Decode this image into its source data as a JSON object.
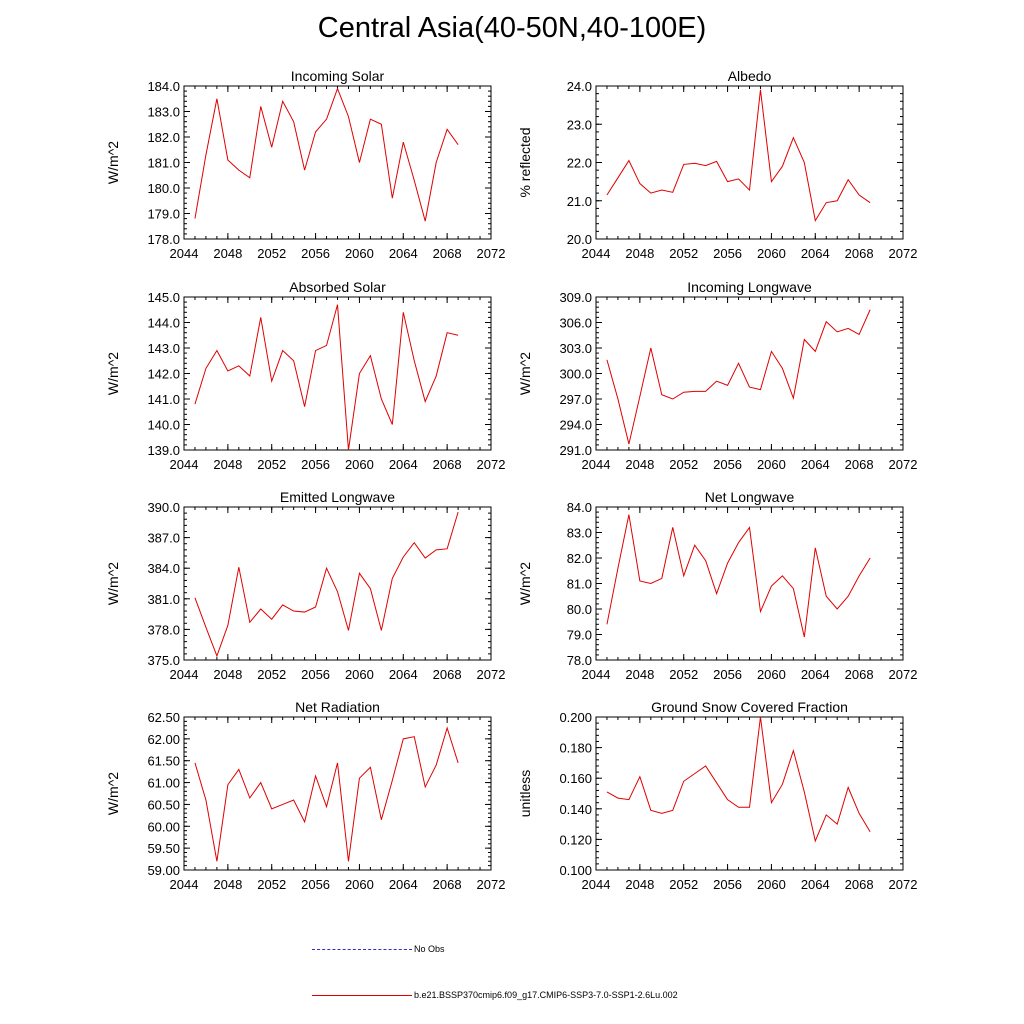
{
  "title": "Central Asia(40-50N,40-100E)",
  "legend": {
    "no_obs": "No Obs",
    "run": "b.e21.BSSP370cmip6.f09_g17.CMIP6-SSP3-7.0-SSP1-2.6Lu.002"
  },
  "colors": {
    "series": "#e00000",
    "no_obs": "#3030c8",
    "axis": "#000000"
  },
  "chart_data": [
    {
      "type": "line",
      "title": "Incoming Solar",
      "ylabel": "W/m^2",
      "xlim": [
        2044,
        2072
      ],
      "xticks": [
        2044,
        2048,
        2052,
        2056,
        2060,
        2064,
        2068,
        2072
      ],
      "xtick_labels": [
        "2044",
        "2048",
        "2052",
        "2056",
        "2060",
        "2064",
        "2068",
        "2072"
      ],
      "ylim": [
        178,
        184
      ],
      "yticks": [
        178,
        179,
        180,
        181,
        182,
        183,
        184
      ],
      "ytick_labels": [
        "178.0",
        "179.0",
        "180.0",
        "181.0",
        "182.0",
        "183.0",
        "184.0"
      ],
      "x": [
        2045,
        2046,
        2047,
        2048,
        2049,
        2050,
        2051,
        2052,
        2053,
        2054,
        2055,
        2056,
        2057,
        2058,
        2059,
        2060,
        2061,
        2062,
        2063,
        2064,
        2065,
        2066,
        2067,
        2068,
        2069
      ],
      "series": [
        {
          "values": [
            178.8,
            181.3,
            183.5,
            181.1,
            180.7,
            180.4,
            183.2,
            181.6,
            183.4,
            182.6,
            180.7,
            182.2,
            182.7,
            183.9,
            182.8,
            181.0,
            182.7,
            182.5,
            179.6,
            181.8,
            180.3,
            178.7,
            181.0,
            182.3,
            181.7
          ]
        }
      ]
    },
    {
      "type": "line",
      "title": "Albedo",
      "ylabel": "% reflected",
      "xlim": [
        2044,
        2072
      ],
      "xticks": [
        2044,
        2048,
        2052,
        2056,
        2060,
        2064,
        2068,
        2072
      ],
      "xtick_labels": [
        "2044",
        "2048",
        "2052",
        "2056",
        "2060",
        "2064",
        "2068",
        "2072"
      ],
      "ylim": [
        20,
        24
      ],
      "yticks": [
        20,
        21,
        22,
        23,
        24
      ],
      "ytick_labels": [
        "20.0",
        "21.0",
        "22.0",
        "23.0",
        "24.0"
      ],
      "x": [
        2045,
        2046,
        2047,
        2048,
        2049,
        2050,
        2051,
        2052,
        2053,
        2054,
        2055,
        2056,
        2057,
        2058,
        2059,
        2060,
        2061,
        2062,
        2063,
        2064,
        2065,
        2066,
        2067,
        2068,
        2069
      ],
      "series": [
        {
          "values": [
            21.15,
            21.6,
            22.05,
            21.45,
            21.2,
            21.28,
            21.22,
            21.95,
            21.98,
            21.92,
            22.03,
            21.5,
            21.57,
            21.28,
            23.9,
            21.5,
            21.9,
            22.65,
            22.0,
            20.48,
            20.95,
            21.0,
            21.55,
            21.15,
            20.95
          ]
        }
      ]
    },
    {
      "type": "line",
      "title": "Absorbed Solar",
      "ylabel": "W/m^2",
      "xlim": [
        2044,
        2072
      ],
      "xticks": [
        2044,
        2048,
        2052,
        2056,
        2060,
        2064,
        2068,
        2072
      ],
      "xtick_labels": [
        "2044",
        "2048",
        "2052",
        "2056",
        "2060",
        "2064",
        "2068",
        "2072"
      ],
      "ylim": [
        139,
        145
      ],
      "yticks": [
        139,
        140,
        141,
        142,
        143,
        144,
        145
      ],
      "ytick_labels": [
        "139.0",
        "140.0",
        "141.0",
        "142.0",
        "143.0",
        "144.0",
        "145.0"
      ],
      "x": [
        2045,
        2046,
        2047,
        2048,
        2049,
        2050,
        2051,
        2052,
        2053,
        2054,
        2055,
        2056,
        2057,
        2058,
        2059,
        2060,
        2061,
        2062,
        2063,
        2064,
        2065,
        2066,
        2067,
        2068,
        2069
      ],
      "series": [
        {
          "values": [
            140.8,
            142.2,
            142.9,
            142.1,
            142.3,
            141.9,
            144.2,
            141.7,
            142.9,
            142.5,
            140.7,
            142.9,
            143.1,
            144.7,
            139.0,
            142.0,
            142.7,
            141.0,
            140.0,
            144.4,
            142.5,
            140.9,
            141.9,
            143.6,
            143.5
          ]
        }
      ]
    },
    {
      "type": "line",
      "title": "Incoming Longwave",
      "ylabel": "W/m^2",
      "xlim": [
        2044,
        2072
      ],
      "xticks": [
        2044,
        2048,
        2052,
        2056,
        2060,
        2064,
        2068,
        2072
      ],
      "xtick_labels": [
        "2044",
        "2048",
        "2052",
        "2056",
        "2060",
        "2064",
        "2068",
        "2072"
      ],
      "ylim": [
        291,
        309
      ],
      "yticks": [
        291,
        294,
        297,
        300,
        303,
        306,
        309
      ],
      "ytick_labels": [
        "291.0",
        "294.0",
        "297.0",
        "300.0",
        "303.0",
        "306.0",
        "309.0"
      ],
      "x": [
        2045,
        2046,
        2047,
        2048,
        2049,
        2050,
        2051,
        2052,
        2053,
        2054,
        2055,
        2056,
        2057,
        2058,
        2059,
        2060,
        2061,
        2062,
        2063,
        2064,
        2065,
        2066,
        2067,
        2068,
        2069
      ],
      "series": [
        {
          "values": [
            301.6,
            297.0,
            291.7,
            297.3,
            303.0,
            297.5,
            297.0,
            297.8,
            297.9,
            297.9,
            299.1,
            298.6,
            301.2,
            298.4,
            298.1,
            302.6,
            300.6,
            297.1,
            304.0,
            302.6,
            306.1,
            304.9,
            305.3,
            304.6,
            307.5
          ]
        }
      ]
    },
    {
      "type": "line",
      "title": "Emitted Longwave",
      "ylabel": "W/m^2",
      "xlim": [
        2044,
        2072
      ],
      "xticks": [
        2044,
        2048,
        2052,
        2056,
        2060,
        2064,
        2068,
        2072
      ],
      "xtick_labels": [
        "2044",
        "2048",
        "2052",
        "2056",
        "2060",
        "2064",
        "2068",
        "2072"
      ],
      "ylim": [
        375,
        390
      ],
      "yticks": [
        375,
        378,
        381,
        384,
        387,
        390
      ],
      "ytick_labels": [
        "375.0",
        "378.0",
        "381.0",
        "384.0",
        "387.0",
        "390.0"
      ],
      "x": [
        2045,
        2046,
        2047,
        2048,
        2049,
        2050,
        2051,
        2052,
        2053,
        2054,
        2055,
        2056,
        2057,
        2058,
        2059,
        2060,
        2061,
        2062,
        2063,
        2064,
        2065,
        2066,
        2067,
        2068,
        2069
      ],
      "series": [
        {
          "values": [
            381.1,
            378.2,
            375.4,
            378.4,
            384.1,
            378.7,
            380.0,
            379.0,
            380.4,
            379.8,
            379.7,
            380.2,
            384.0,
            381.7,
            377.9,
            383.5,
            382.0,
            377.9,
            383.0,
            385.1,
            386.5,
            385.0,
            385.8,
            385.9,
            389.5
          ]
        }
      ]
    },
    {
      "type": "line",
      "title": "Net Longwave",
      "ylabel": "W/m^2",
      "xlim": [
        2044,
        2072
      ],
      "xticks": [
        2044,
        2048,
        2052,
        2056,
        2060,
        2064,
        2068,
        2072
      ],
      "xtick_labels": [
        "2044",
        "2048",
        "2052",
        "2056",
        "2060",
        "2064",
        "2068",
        "2072"
      ],
      "ylim": [
        78,
        84
      ],
      "yticks": [
        78,
        79,
        80,
        81,
        82,
        83,
        84
      ],
      "ytick_labels": [
        "78.0",
        "79.0",
        "80.0",
        "81.0",
        "82.0",
        "83.0",
        "84.0"
      ],
      "x": [
        2045,
        2046,
        2047,
        2048,
        2049,
        2050,
        2051,
        2052,
        2053,
        2054,
        2055,
        2056,
        2057,
        2058,
        2059,
        2060,
        2061,
        2062,
        2063,
        2064,
        2065,
        2066,
        2067,
        2068,
        2069
      ],
      "series": [
        {
          "values": [
            79.4,
            81.6,
            83.7,
            81.1,
            81.0,
            81.2,
            83.2,
            81.3,
            82.5,
            81.9,
            80.6,
            81.8,
            82.6,
            83.2,
            79.9,
            80.9,
            81.3,
            80.8,
            78.9,
            82.4,
            80.5,
            80.0,
            80.5,
            81.3,
            82.0
          ]
        }
      ]
    },
    {
      "type": "line",
      "title": "Net Radiation",
      "ylabel": "W/m^2",
      "xlim": [
        2044,
        2072
      ],
      "xticks": [
        2044,
        2048,
        2052,
        2056,
        2060,
        2064,
        2068,
        2072
      ],
      "xtick_labels": [
        "2044",
        "2048",
        "2052",
        "2056",
        "2060",
        "2064",
        "2068",
        "2072"
      ],
      "ylim": [
        59,
        62.5
      ],
      "yticks": [
        59,
        59.5,
        60,
        60.5,
        61,
        61.5,
        62,
        62.5
      ],
      "ytick_labels": [
        "59.00",
        "59.50",
        "60.00",
        "60.50",
        "61.00",
        "61.50",
        "62.00",
        "62.50"
      ],
      "x": [
        2045,
        2046,
        2047,
        2048,
        2049,
        2050,
        2051,
        2052,
        2053,
        2054,
        2055,
        2056,
        2057,
        2058,
        2059,
        2060,
        2061,
        2062,
        2063,
        2064,
        2065,
        2066,
        2067,
        2068,
        2069
      ],
      "series": [
        {
          "values": [
            61.45,
            60.6,
            59.2,
            60.95,
            61.3,
            60.65,
            61.0,
            60.4,
            60.5,
            60.6,
            60.1,
            61.15,
            60.45,
            61.45,
            59.2,
            61.1,
            61.35,
            60.15,
            61.05,
            62.0,
            62.05,
            60.9,
            61.4,
            62.25,
            61.45
          ]
        }
      ]
    },
    {
      "type": "line",
      "title": "Ground Snow Covered Fraction",
      "ylabel": "unitless",
      "xlim": [
        2044,
        2072
      ],
      "xticks": [
        2044,
        2048,
        2052,
        2056,
        2060,
        2064,
        2068,
        2072
      ],
      "xtick_labels": [
        "2044",
        "2048",
        "2052",
        "2056",
        "2060",
        "2064",
        "2068",
        "2072"
      ],
      "ylim": [
        0.1,
        0.2
      ],
      "yticks": [
        0.1,
        0.12,
        0.14,
        0.16,
        0.18,
        0.2
      ],
      "ytick_labels": [
        "0.100",
        "0.120",
        "0.140",
        "0.160",
        "0.180",
        "0.200"
      ],
      "x": [
        2045,
        2046,
        2047,
        2048,
        2049,
        2050,
        2051,
        2052,
        2053,
        2054,
        2055,
        2056,
        2057,
        2058,
        2059,
        2060,
        2061,
        2062,
        2063,
        2064,
        2065,
        2066,
        2067,
        2068,
        2069
      ],
      "series": [
        {
          "values": [
            0.151,
            0.147,
            0.146,
            0.161,
            0.139,
            0.137,
            0.139,
            0.158,
            0.163,
            0.168,
            0.157,
            0.146,
            0.141,
            0.141,
            0.2,
            0.144,
            0.156,
            0.178,
            0.151,
            0.119,
            0.136,
            0.13,
            0.154,
            0.137,
            0.125
          ]
        }
      ]
    }
  ]
}
